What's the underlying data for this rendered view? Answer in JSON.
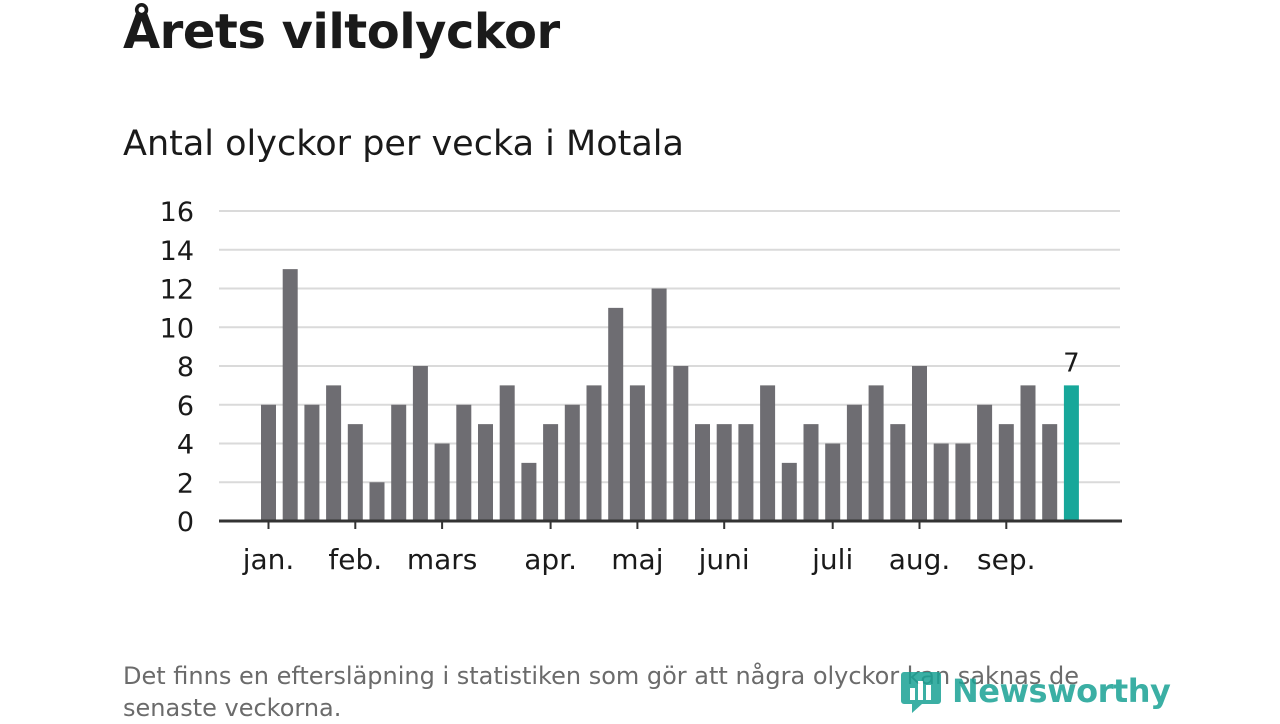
{
  "heading": "Årets viltolyckor",
  "subtitle": "Antal olyckor per vecka i Motala",
  "footnote": "Det finns en eftersläpning i statistiken som gör att några olyckor kan saknas de senaste veckorna.",
  "logo": {
    "text": "Newsworthy",
    "icon": "newsworthy-logo-icon",
    "color": "#19a295"
  },
  "chart_data": {
    "type": "bar",
    "values": [
      6,
      13,
      6,
      7,
      5,
      2,
      6,
      8,
      4,
      6,
      5,
      7,
      3,
      5,
      6,
      7,
      11,
      7,
      12,
      8,
      5,
      5,
      5,
      7,
      3,
      5,
      4,
      6,
      7,
      5,
      8,
      4,
      4,
      6,
      5,
      7,
      5,
      7
    ],
    "month_labels": [
      {
        "label": "jan.",
        "week": 1
      },
      {
        "label": "feb.",
        "week": 5
      },
      {
        "label": "mars",
        "week": 9
      },
      {
        "label": "apr.",
        "week": 14
      },
      {
        "label": "maj",
        "week": 18
      },
      {
        "label": "juni",
        "week": 22
      },
      {
        "label": "juli",
        "week": 27
      },
      {
        "label": "aug.",
        "week": 31
      },
      {
        "label": "sep.",
        "week": 35
      }
    ],
    "ylim": [
      0,
      16
    ],
    "yticks": [
      0,
      2,
      4,
      6,
      8,
      10,
      12,
      14,
      16
    ],
    "grid": true,
    "bar_color": "#6e6d72",
    "highlight_color": "#17a79a",
    "highlight_last_label": "7"
  }
}
